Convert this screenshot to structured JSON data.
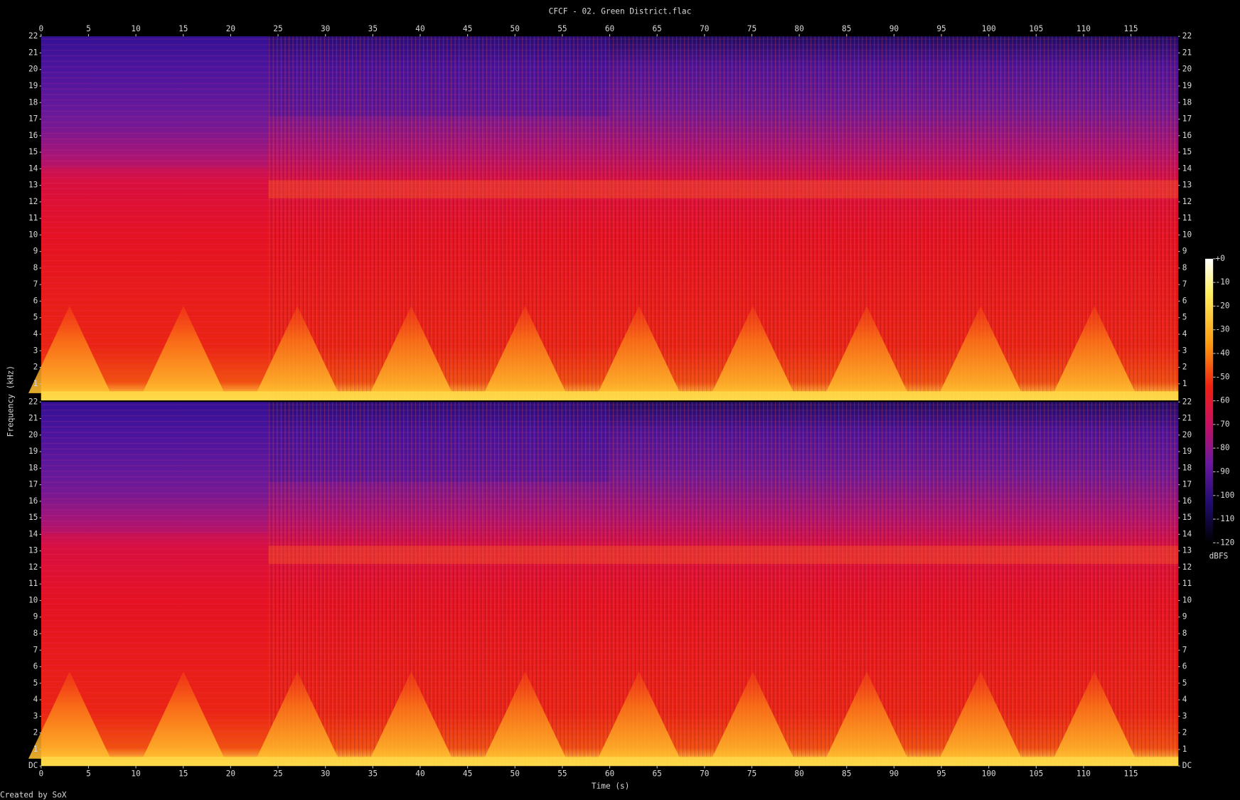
{
  "chart_data": [
    {
      "type": "spectrogram",
      "title": "CFCF - 02. Green District.flac",
      "ylabel": "Frequency (kHz)",
      "xlim": [
        0,
        120
      ],
      "xticks": [
        0,
        5,
        10,
        15,
        20,
        25,
        30,
        35,
        40,
        45,
        50,
        55,
        60,
        65,
        70,
        75,
        80,
        85,
        90,
        95,
        100,
        105,
        110,
        115
      ],
      "ylim": [
        0,
        22
      ],
      "yticks": [
        1,
        2,
        3,
        4,
        5,
        6,
        7,
        8,
        9,
        10,
        11,
        12,
        13,
        14,
        15,
        16,
        17,
        18,
        19,
        20,
        21,
        22
      ],
      "zlim": [
        -120,
        0
      ],
      "zlabel": "dBFS",
      "zticks": [
        {
          "value": 0,
          "label": "+0"
        },
        -10,
        -20,
        -30,
        -40,
        -50,
        -60,
        -70,
        -80,
        -90,
        -100,
        -110,
        -120
      ]
    },
    {
      "type": "spectrogram",
      "xlabel": "Time (s)",
      "xlim": [
        0,
        120
      ],
      "xticks": [
        0,
        5,
        10,
        15,
        20,
        25,
        30,
        35,
        40,
        45,
        50,
        55,
        60,
        65,
        70,
        75,
        80,
        85,
        90,
        95,
        100,
        105,
        110,
        115
      ],
      "ylim": [
        0,
        22
      ],
      "yticks": [
        {
          "value": 0,
          "label": "DC"
        },
        1,
        2,
        3,
        4,
        5,
        6,
        7,
        8,
        9,
        10,
        11,
        12,
        13,
        14,
        15,
        16,
        17,
        18,
        19,
        20,
        21,
        22
      ]
    }
  ],
  "footer": "Created by SoX"
}
